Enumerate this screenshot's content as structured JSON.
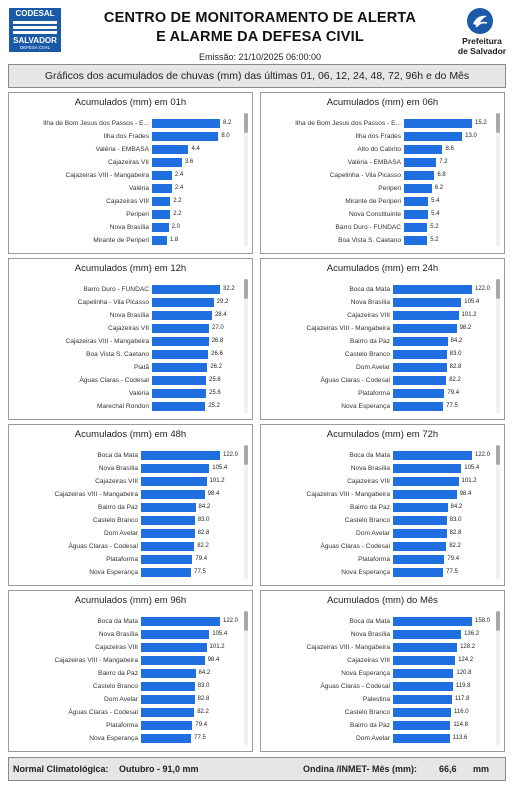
{
  "header": {
    "title_line1": "CENTRO DE MONITORAMENTO DE ALERTA",
    "title_line2": "E ALARME DA DEFESA CIVIL",
    "emissao": "Emissão: 21/10/2025 06:00:00",
    "logo_left": {
      "line1": "CODESAL",
      "line2": "SALVADOR",
      "line3": "DEFESA CIVIL"
    },
    "logo_right": {
      "line1": "Prefeitura",
      "line2": "de Salvador"
    }
  },
  "subtitle": "Gráficos dos acumulados de chuvas (mm) das últimas 01, 06, 12, 24, 48, 72, 96h e do Mês",
  "colors": {
    "bar": "#1f6fe0",
    "logo_blue": "#1a5aa8"
  },
  "chart_data": [
    {
      "type": "bar",
      "orientation": "horizontal",
      "title": "Acumulados (mm) em 01h",
      "categories": [
        "Ilha de Bom Jesus dos Passos - E...",
        "Ilha dos Frades",
        "Valéria - EMBASA",
        "Cajazeiras VII",
        "Cajazeiras VIII - Mangabeira",
        "Valéria",
        "Cajazeiras VIII",
        "Periperi",
        "Nova Brasília",
        "Mirante de Periperi"
      ],
      "values": [
        8.2,
        8.0,
        4.4,
        3.6,
        2.4,
        2.4,
        2.2,
        2.2,
        2.0,
        1.8
      ]
    },
    {
      "type": "bar",
      "orientation": "horizontal",
      "title": "Acumulados (mm) em 06h",
      "categories": [
        "Ilha de Bom Jesus dos Passos - E...",
        "Ilha dos Frades",
        "Alto do Cabrito",
        "Valéria - EMBASA",
        "Capelinha - Vila Picasso",
        "Periperi",
        "Mirante de Periperi",
        "Nova Constituinte",
        "Barro Duro - FUNDAC",
        "Boa Vista S. Caetano"
      ],
      "values": [
        15.2,
        13.0,
        8.6,
        7.2,
        6.8,
        6.2,
        5.4,
        5.4,
        5.2,
        5.2
      ]
    },
    {
      "type": "bar",
      "orientation": "horizontal",
      "title": "Acumulados (mm) em 12h",
      "categories": [
        "Barro Duro - FUNDAC",
        "Capelinha - Vila Picasso",
        "Nova Brasília",
        "Cajazeiras VII",
        "Cajazeiras VIII - Mangabeira",
        "Boa Vista S. Caetano",
        "Piatã",
        "Águas Claras - Codesal",
        "Valéria",
        "Marechal Rondon"
      ],
      "values": [
        32.2,
        29.2,
        28.4,
        27.0,
        26.8,
        26.6,
        26.2,
        25.6,
        25.6,
        25.2
      ]
    },
    {
      "type": "bar",
      "orientation": "horizontal",
      "title": "Acumulados (mm) em 24h",
      "categories": [
        "Boca da Mata",
        "Nova Brasília",
        "Cajazeiras VIII",
        "Cajazeiras VIII - Mangabeira",
        "Bairro da Paz",
        "Castelo Branco",
        "Dom Avelar",
        "Águas Claras - Codesal",
        "Plataforma",
        "Nova Esperança"
      ],
      "values": [
        122.0,
        105.4,
        101.2,
        98.2,
        84.2,
        83.0,
        82.8,
        82.2,
        79.4,
        77.5
      ]
    },
    {
      "type": "bar",
      "orientation": "horizontal",
      "title": "Acumulados (mm) em 48h",
      "categories": [
        "Boca da Mata",
        "Nova Brasília",
        "Cajazeiras VIII",
        "Cajazeiras VIII - Mangabeira",
        "Bairro da Paz",
        "Castelo Branco",
        "Dom Avelar",
        "Águas Claras - Codesal",
        "Plataforma",
        "Nova Esperança"
      ],
      "values": [
        122.0,
        105.4,
        101.2,
        98.4,
        84.2,
        83.0,
        82.8,
        82.2,
        79.4,
        77.5
      ]
    },
    {
      "type": "bar",
      "orientation": "horizontal",
      "title": "Acumulados (mm) em 72h",
      "categories": [
        "Boca da Mata",
        "Nova Brasília",
        "Cajazeiras VIII",
        "Cajazeiras VIII - Mangabeira",
        "Bairro da Paz",
        "Castelo Branco",
        "Dom Avelar",
        "Águas Claras - Codesal",
        "Plataforma",
        "Nova Esperança"
      ],
      "values": [
        122.0,
        105.4,
        101.2,
        98.4,
        84.2,
        83.0,
        82.8,
        82.2,
        79.4,
        77.5
      ]
    },
    {
      "type": "bar",
      "orientation": "horizontal",
      "title": "Acumulados (mm) em 96h",
      "categories": [
        "Boca da Mata",
        "Nova Brasília",
        "Cajazeiras VIII",
        "Cajazeiras VIII - Mangabeira",
        "Bairro da Paz",
        "Castelo Branco",
        "Dom Avelar",
        "Águas Claras - Codesal",
        "Plataforma",
        "Nova Esperança"
      ],
      "values": [
        122.0,
        105.4,
        101.2,
        98.4,
        84.2,
        83.0,
        82.8,
        82.2,
        79.4,
        77.5
      ]
    },
    {
      "type": "bar",
      "orientation": "horizontal",
      "title": "Acumulados (mm) do Mês",
      "categories": [
        "Boca da Mata",
        "Nova Brasília",
        "Cajazeiras VIII - Mangabeira",
        "Cajazeiras VIII",
        "Nova Esperança",
        "Águas Claras - Codesal",
        "Palestina",
        "Castelo Branco",
        "Bairro da Paz",
        "Dom Avelar"
      ],
      "values": [
        158.0,
        136.2,
        128.2,
        124.2,
        120.8,
        119.8,
        117.8,
        116.0,
        114.8,
        113.6
      ]
    }
  ],
  "footer": {
    "normal_label": "Normal Climatológica:",
    "normal_value": "Outubro - 91,0 mm",
    "ondina_label": "Ondina /INMET- Mês (mm):",
    "ondina_value": "66,6",
    "ondina_unit": "mm"
  }
}
